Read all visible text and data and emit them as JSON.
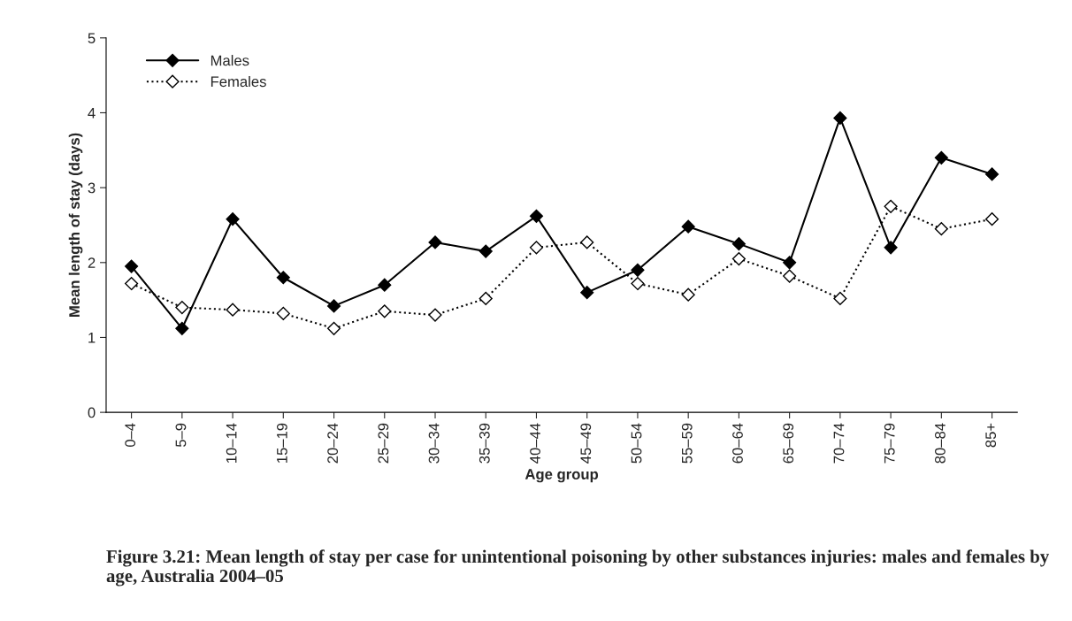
{
  "chart_data": {
    "type": "line",
    "xlabel": "Age group",
    "ylabel": "Mean length of stay (days)",
    "categories": [
      "0–4",
      "5–9",
      "10–14",
      "15–19",
      "20–24",
      "25–29",
      "30–34",
      "35–39",
      "40–44",
      "45–49",
      "50–54",
      "55–59",
      "60–64",
      "65–69",
      "70–74",
      "75–79",
      "80–84",
      "85+"
    ],
    "series": [
      {
        "name": "Males",
        "color": "#000000",
        "line_style": "solid",
        "values": [
          1.95,
          1.12,
          2.58,
          1.8,
          1.42,
          1.7,
          2.27,
          2.15,
          2.62,
          1.6,
          1.9,
          2.48,
          2.25,
          2.0,
          3.93,
          2.2,
          3.4,
          3.18
        ]
      },
      {
        "name": "Females",
        "color": "#000000",
        "line_style": "dotted",
        "values": [
          1.72,
          1.4,
          1.37,
          1.32,
          1.12,
          1.35,
          1.3,
          1.52,
          2.2,
          2.27,
          1.72,
          1.57,
          2.05,
          1.82,
          1.52,
          2.75,
          2.45,
          2.58
        ]
      }
    ],
    "ylim": [
      0,
      5
    ],
    "yticks": [
      0,
      1,
      2,
      3,
      4,
      5
    ],
    "grid": false,
    "legend": "top left",
    "marker": "diamond",
    "annotations": [
      "Figure 3.21: Mean length of stay per case for unintentional poisoning by other substances injuries: males and females by age, Australia 2004–05"
    ]
  }
}
